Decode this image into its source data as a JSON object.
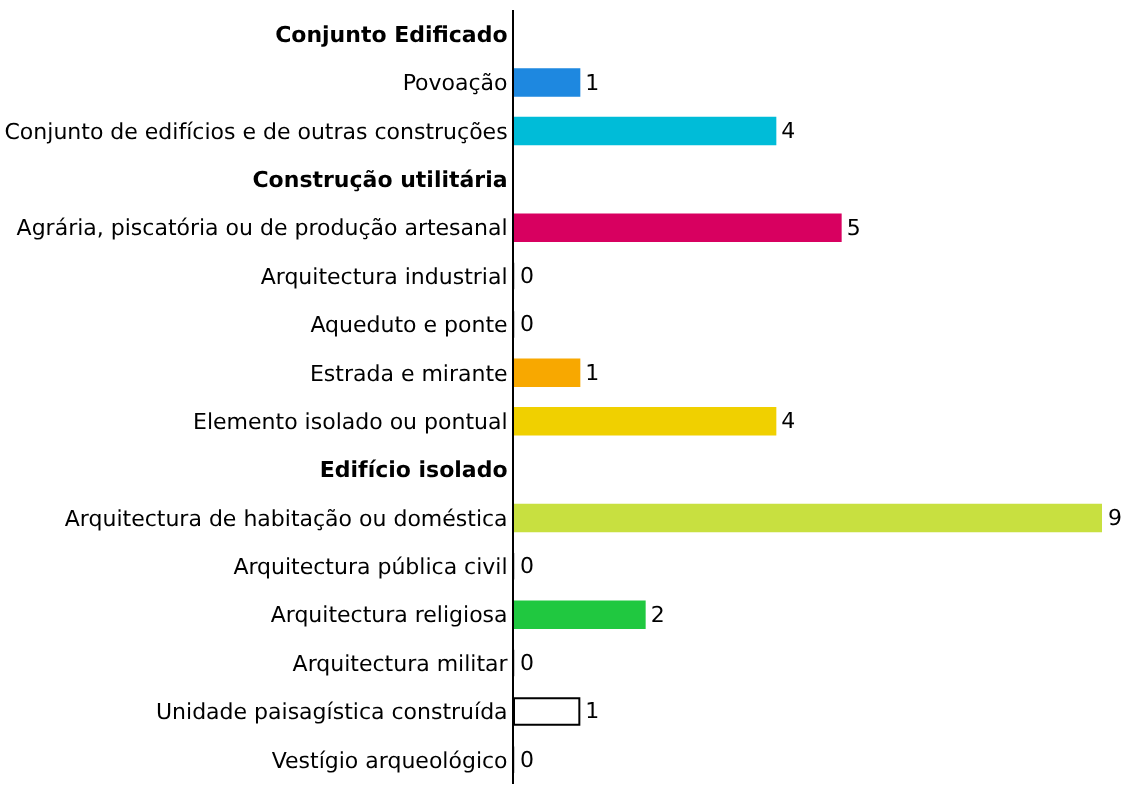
{
  "chart_data": {
    "type": "bar",
    "orientation": "horizontal",
    "categories": [
      "Conjunto Edificado",
      "Povoação",
      "Conjunto de edifícios e de outras construções",
      "Construção utilitária",
      "Agrária, piscatória ou de produção artesanal",
      "Arquitectura industrial",
      "Aqueduto e ponte",
      "Estrada e mirante",
      "Elemento isolado ou pontual",
      "Edifício isolado",
      "Arquitectura de habitação ou doméstica",
      "Arquitectura pública civil",
      "Arquitectura religiosa",
      "Arquitectura militar",
      "Unidade paisagística construída",
      "Vestígio arqueológico"
    ],
    "values": [
      null,
      1,
      4,
      null,
      5,
      0,
      0,
      1,
      4,
      null,
      9,
      0,
      2,
      0,
      1,
      0
    ],
    "colors": [
      null,
      "#1e88e0",
      "#00bcd8",
      null,
      "#d80060",
      "#cccccc",
      "#cccccc",
      "#f8a800",
      "#f0d000",
      null,
      "#c8e040",
      "#cccccc",
      "#20c840",
      "#cccccc",
      "#ffffff",
      "#cccccc"
    ],
    "xlim": [
      0,
      9
    ],
    "tick_labels": "y",
    "data_labels": true
  }
}
